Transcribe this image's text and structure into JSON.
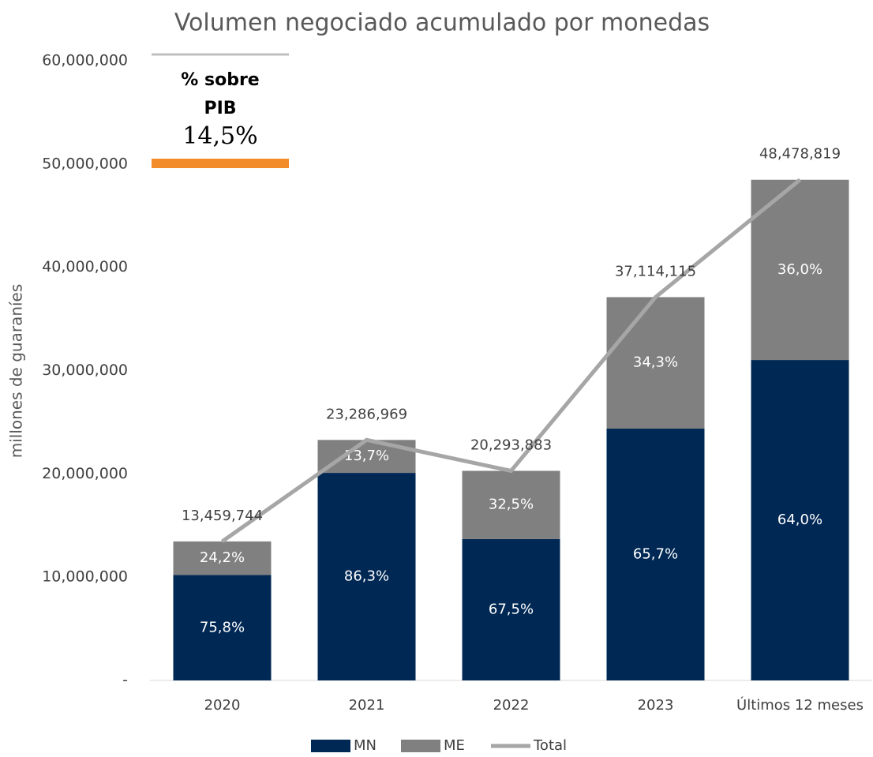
{
  "chart_data": {
    "type": "stacked_bar_line",
    "title": "Volumen negociado acumulado por monedas",
    "y_label": "millones de guaraníes",
    "annotation_title": "% sobre PIB",
    "annotation_value": "14,5%",
    "categories": [
      "2020",
      "2021",
      "2022",
      "2023",
      "Últimos 12 meses"
    ],
    "series": [
      {
        "name": "MN",
        "color": "#002855",
        "values": [
          10202486,
          20096654,
          13698371,
          24383974,
          31026444
        ],
        "value_labels": [
          "75,8%",
          "86,3%",
          "67,5%",
          "65,7%",
          "64,0%"
        ]
      },
      {
        "name": "ME",
        "color": "#808080",
        "values": [
          3257258,
          3190315,
          6595512,
          12730141,
          17452375
        ],
        "value_labels": [
          "24,2%",
          "13,7%",
          "32,5%",
          "34,3%",
          "36,0%"
        ]
      },
      {
        "name": "Total",
        "color": "#a6a6a6",
        "line": true,
        "values": [
          13459744,
          23286969,
          20293883,
          37114115,
          48478819
        ],
        "value_labels": [
          "13,459,744",
          "23,286,969",
          "20,293,883",
          "37,114,115",
          "48,478,819"
        ]
      }
    ],
    "ylim": [
      0,
      60000000
    ],
    "yticks": [
      {
        "value": 0,
        "label": "-"
      },
      {
        "value": 10000000,
        "label": "10,000,000"
      },
      {
        "value": 20000000,
        "label": "20,000,000"
      },
      {
        "value": 30000000,
        "label": "30,000,000"
      },
      {
        "value": 40000000,
        "label": "40,000,000"
      },
      {
        "value": 50000000,
        "label": "50,000,000"
      },
      {
        "value": 60000000,
        "label": "60,000,000"
      }
    ]
  }
}
